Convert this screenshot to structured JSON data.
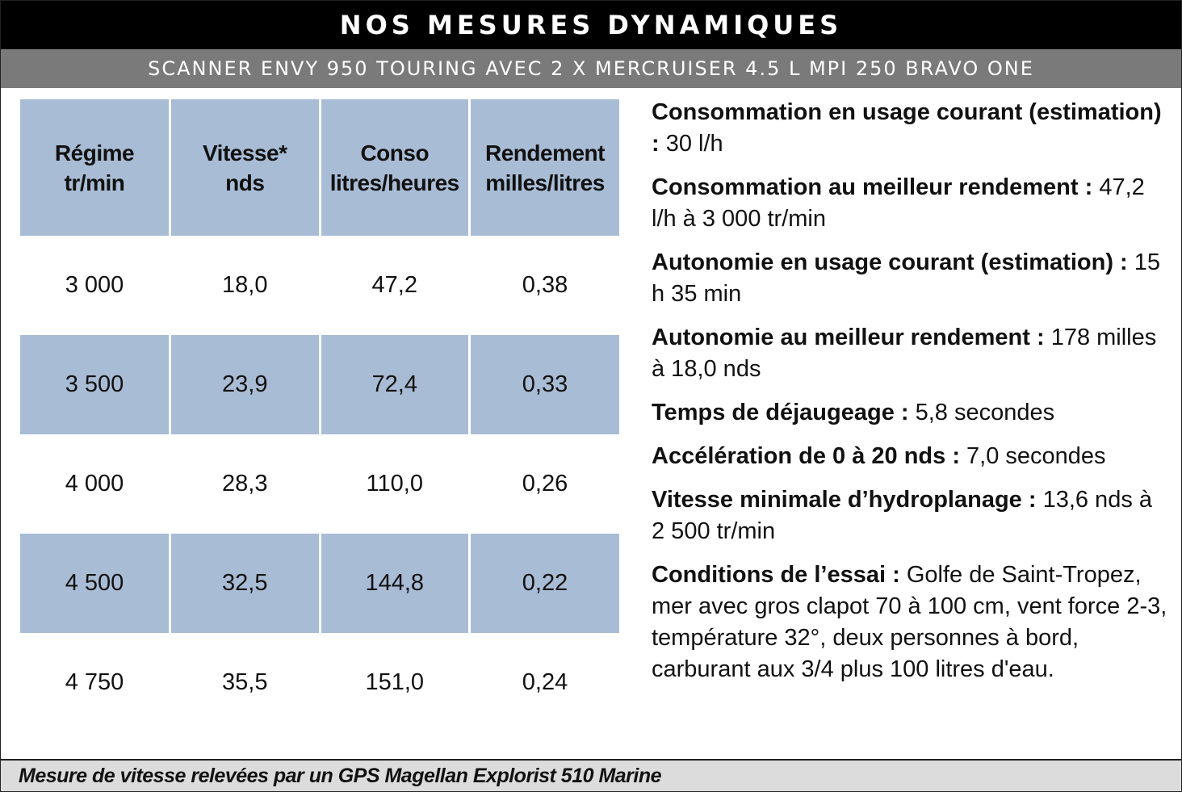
{
  "header": {
    "title": "NOS MESURES DYNAMIQUES",
    "subtitle": "SCANNER ENVY 950 TOURING AVEC 2 X MERCRUISER 4.5 L MPI 250 BRAVO ONE"
  },
  "table": {
    "columns": [
      {
        "line1": "Régime",
        "line2": "tr/min"
      },
      {
        "line1": "Vitesse*",
        "line2": "nds"
      },
      {
        "line1": "Conso",
        "line2": "litres/heures"
      },
      {
        "line1": "Rendement",
        "line2": "milles/litres"
      }
    ],
    "rows": [
      [
        "3 000",
        "18,0",
        "47,2",
        "0,38"
      ],
      [
        "3 500",
        "23,9",
        "72,4",
        "0,33"
      ],
      [
        "4 000",
        "28,3",
        "110,0",
        "0,26"
      ],
      [
        "4 500",
        "32,5",
        "144,8",
        "0,22"
      ],
      [
        "4 750",
        "35,5",
        "151,0",
        "0,24"
      ]
    ]
  },
  "notes": [
    {
      "label": "Consommation en usage courant (estimation) : ",
      "value": "30 l/h"
    },
    {
      "label": "Consommation au meilleur rendement : ",
      "value": "47,2 l/h à 3 000 tr/min"
    },
    {
      "label": "Autonomie en usage courant (estimation) : ",
      "value": "15 h 35 min"
    },
    {
      "label": "Autonomie au meilleur rendement : ",
      "value": "178 milles à 18,0 nds"
    },
    {
      "label": "Temps de déjaugeage : ",
      "value": "5,8 secondes"
    },
    {
      "label": "Accélération de 0 à 20 nds : ",
      "value": "7,0 secondes"
    },
    {
      "label": "Vitesse minimale d’hydroplanage : ",
      "value": "13,6 nds à 2 500 tr/min"
    },
    {
      "label": "Conditions de l’essai : ",
      "value": "Golfe de Saint-Tropez, mer avec gros clapot 70 à 100 cm, vent force 2-3, température 32°, deux personnes à bord, carburant aux 3/4 plus 100 litres d'eau."
    }
  ],
  "footer": {
    "text": "Mesure de vitesse relevées par un GPS Magellan Explorist 510 Marine"
  }
}
